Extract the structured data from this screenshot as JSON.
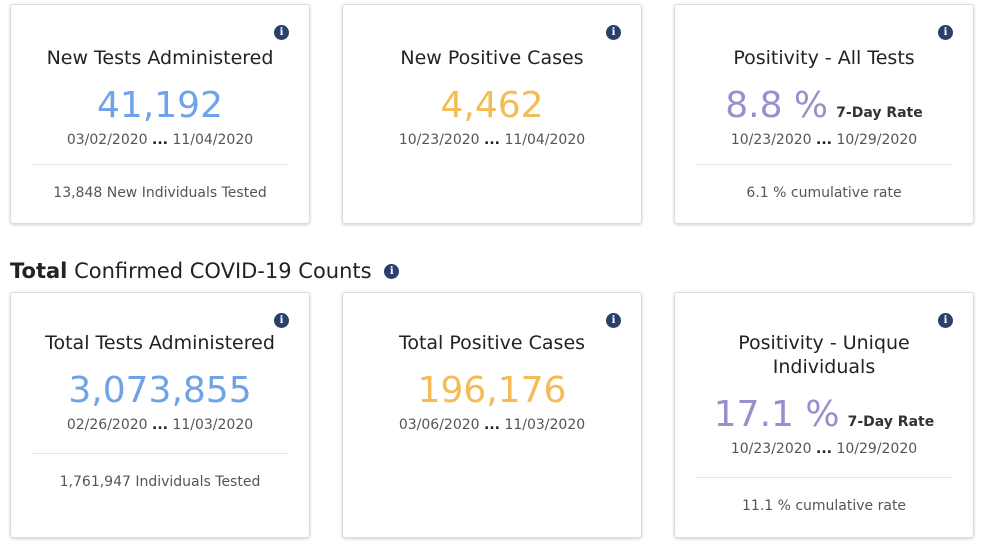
{
  "colors": {
    "tests": "#6fa3e8",
    "cases": "#f5bb54",
    "positivity": "#9a8fcc",
    "info_icon": "#2b3f6b"
  },
  "section": {
    "bold_word": "Total",
    "rest": "Confirmed COVID-19 Counts"
  },
  "cards": [
    {
      "title": "New Tests Administered",
      "value": "41,192",
      "date_from": "03/02/2020",
      "date_to": "11/04/2020",
      "footer": "13,848 New Individuals Tested"
    },
    {
      "title": "New Positive Cases",
      "value": "4,462",
      "date_from": "10/23/2020",
      "date_to": "11/04/2020"
    },
    {
      "title": "Positivity - All Tests",
      "value": "8.8 %",
      "rate_label": "7-Day Rate",
      "date_from": "10/23/2020",
      "date_to": "10/29/2020",
      "footer": "6.1 % cumulative rate"
    },
    {
      "title": "Total Tests Administered",
      "value": "3,073,855",
      "date_from": "02/26/2020",
      "date_to": "11/03/2020",
      "footer": "1,761,947 Individuals Tested"
    },
    {
      "title": "Total Positive Cases",
      "value": "196,176",
      "date_from": "03/06/2020",
      "date_to": "11/03/2020"
    },
    {
      "title_line1": "Positivity - Unique",
      "title_line2": "Individuals",
      "value": "17.1 %",
      "rate_label": "7-Day Rate",
      "date_from": "10/23/2020",
      "date_to": "10/29/2020",
      "footer": "11.1 % cumulative rate"
    }
  ],
  "ellipsis": "...",
  "info_glyph": "i"
}
